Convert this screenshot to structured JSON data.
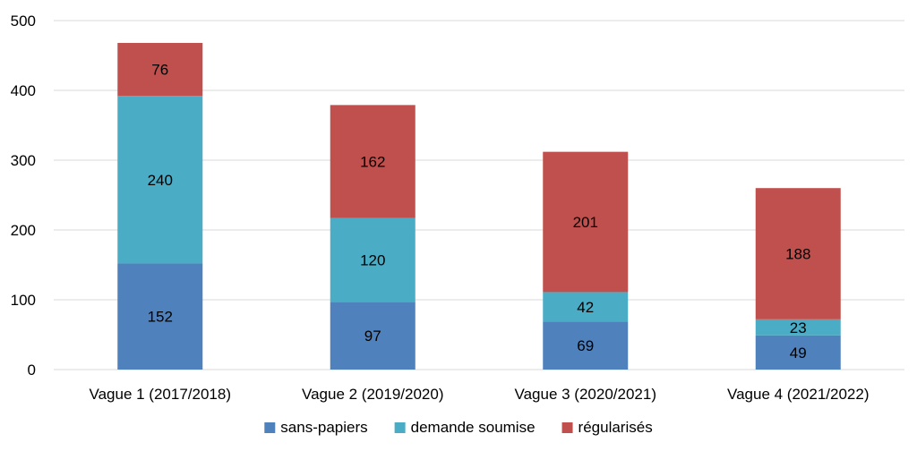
{
  "chart_data": {
    "type": "bar",
    "stacked": true,
    "categories": [
      "Vague 1 (2017/2018)",
      "Vague 2 (2019/2020)",
      "Vague 3 (2020/2021)",
      "Vague 4 (2021/2022)"
    ],
    "series": [
      {
        "name": "sans-papiers",
        "values": [
          152,
          97,
          69,
          49
        ],
        "color": "#4F81BD"
      },
      {
        "name": "demande soumise",
        "values": [
          240,
          120,
          42,
          23
        ],
        "color": "#4BACC6"
      },
      {
        "name": "régularisés",
        "values": [
          76,
          162,
          201,
          188
        ],
        "color": "#C0504D"
      }
    ],
    "ylim": [
      0,
      500
    ],
    "yticks": [
      0,
      100,
      200,
      300,
      400,
      500
    ],
    "grid": true,
    "legend_position": "bottom"
  }
}
